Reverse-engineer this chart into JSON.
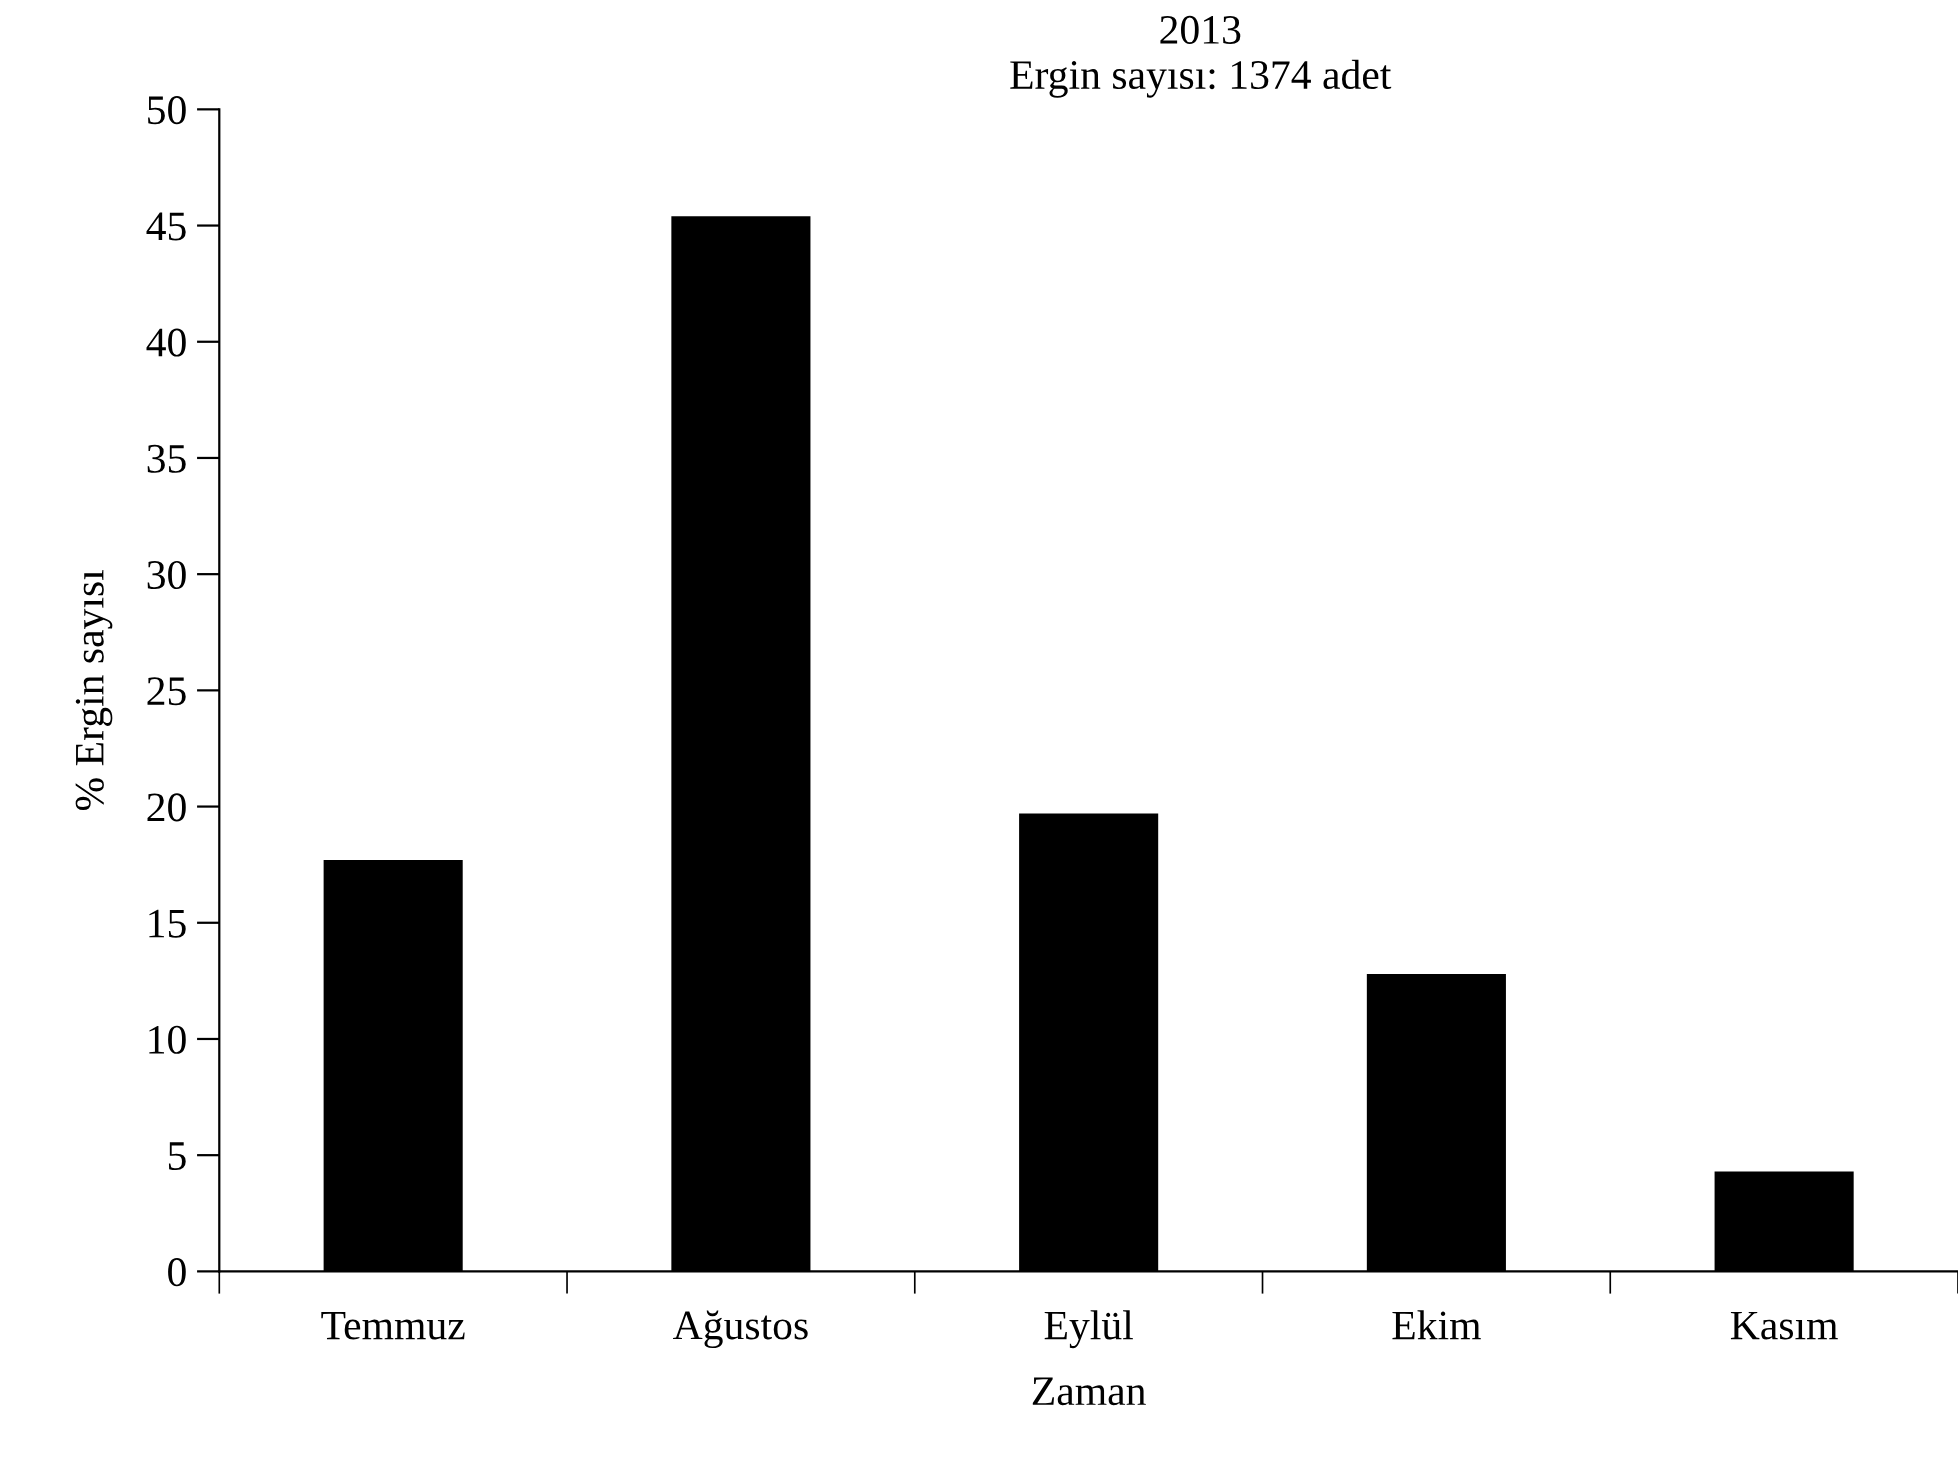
{
  "chart_data": {
    "type": "bar",
    "title": "2013",
    "subtitle": "Ergin sayısı: 1374 adet",
    "xlabel": "Zaman",
    "ylabel": "% Ergin sayısı",
    "categories": [
      "Temmuz",
      "Ağustos",
      "Eylül",
      "Ekim",
      "Kasım"
    ],
    "values": [
      17.7,
      45.4,
      19.7,
      12.8,
      4.3
    ],
    "color": "#000000",
    "ylim": [
      0,
      50
    ],
    "yticks": [
      0,
      5,
      10,
      15,
      20,
      25,
      30,
      35,
      40,
      45,
      50
    ],
    "grid": false,
    "legend": false
  }
}
